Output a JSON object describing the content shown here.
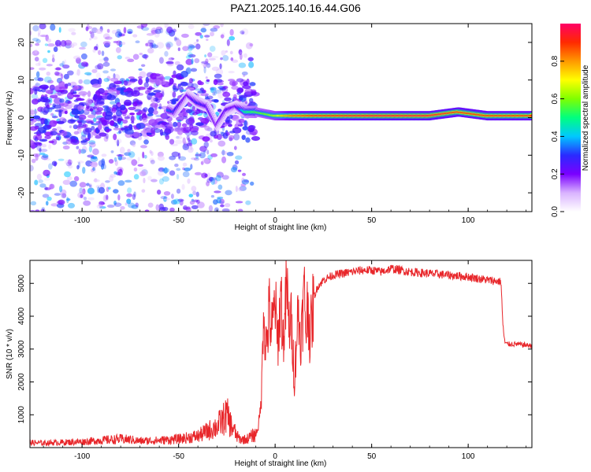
{
  "title": "PAZ1.2025.140.16.44.G06",
  "colors": {
    "snr_line": "#e8262a",
    "axis": "#000000",
    "tick_mark": "#666666",
    "tonal_line": "#ff2a00",
    "scatter": "#7a1fdc"
  },
  "chart_data": [
    {
      "type": "heatmap",
      "xlabel": "Height of straight line (km)",
      "ylabel": "Frequency (Hz)",
      "xlim": [
        -127,
        133
      ],
      "ylim": [
        -25,
        25
      ],
      "x_ticks": [
        -100,
        -50,
        0,
        50,
        100
      ],
      "y_ticks": [
        -20,
        -10,
        0,
        10,
        20
      ],
      "grid": false,
      "colorbar": {
        "label": "Normalized spectral amplitude",
        "range": [
          0,
          1
        ],
        "ticks": [
          0.0,
          0.2,
          0.4,
          0.6,
          0.8
        ],
        "colormap": [
          "#ffffff",
          "#d9b3ff",
          "#7a00ff",
          "#2a2aff",
          "#00c8ff",
          "#00ff7f",
          "#7fff00",
          "#ffff00",
          "#ff9900",
          "#ff2a00",
          "#ff0066"
        ]
      },
      "dominant_track": {
        "x": [
          -55,
          -52,
          -45,
          -40,
          -35,
          -30,
          -25,
          -20,
          -15,
          -10,
          -5,
          0,
          10,
          20,
          50,
          80,
          95,
          110,
          133
        ],
        "frequency": [
          2,
          1.5,
          6,
          4,
          3,
          -2,
          2,
          3,
          1.5,
          1.5,
          1,
          0.5,
          0.5,
          0.5,
          0.5,
          0.5,
          1.5,
          0.5,
          0.5
        ],
        "amplitude": [
          0.35,
          0.3,
          0.2,
          0.3,
          0.25,
          0.2,
          0.25,
          0.2,
          0.5,
          0.55,
          0.6,
          0.65,
          0.85,
          0.9,
          0.95,
          0.95,
          0.9,
          0.9,
          0.9
        ]
      }
    },
    {
      "type": "line",
      "xlabel": "Height of straight line (km)",
      "ylabel": "SNR (10 * v/v)",
      "xlim": [
        -127,
        133
      ],
      "ylim": [
        0,
        5700
      ],
      "x_ticks": [
        -100,
        -50,
        0,
        50,
        100
      ],
      "y_ticks": [
        1000,
        2000,
        3000,
        4000,
        5000
      ],
      "grid": false,
      "series": [
        {
          "x": [
            -127,
            -120,
            -110,
            -100,
            -90,
            -80,
            -75,
            -70,
            -60,
            -50,
            -40,
            -35,
            -30,
            -27,
            -25,
            -23,
            -21,
            -20,
            -18,
            -15,
            -12,
            -10,
            -9,
            -8,
            -7,
            -6,
            -5,
            -4,
            -3,
            -2,
            -1,
            0,
            1,
            2,
            3,
            4,
            5,
            6,
            7,
            8,
            9,
            10,
            11,
            12,
            13,
            14,
            15,
            16,
            17,
            18,
            19,
            20,
            21,
            22,
            25,
            30,
            35,
            40,
            45,
            50,
            55,
            60,
            65,
            70,
            80,
            90,
            100,
            110,
            117,
            118,
            119,
            120,
            125,
            133
          ],
          "y": [
            150,
            140,
            160,
            180,
            220,
            260,
            240,
            200,
            220,
            260,
            350,
            500,
            650,
            850,
            1000,
            700,
            500,
            350,
            250,
            250,
            350,
            400,
            600,
            900,
            1700,
            4500,
            3100,
            3400,
            4200,
            3500,
            3800,
            4600,
            3200,
            3600,
            4800,
            3300,
            3700,
            5100,
            3600,
            4000,
            3300,
            2000,
            3300,
            4200,
            3400,
            3700,
            4800,
            3600,
            4500,
            3400,
            3800,
            4600,
            4700,
            4900,
            5100,
            5250,
            5300,
            5350,
            5400,
            5400,
            5350,
            5450,
            5400,
            5350,
            5300,
            5250,
            5200,
            5100,
            5050,
            3700,
            3200,
            3150,
            3150,
            3100
          ]
        }
      ]
    }
  ]
}
